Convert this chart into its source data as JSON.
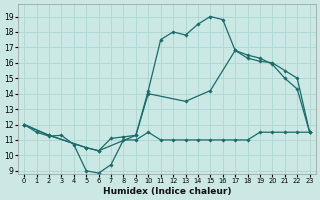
{
  "xlabel": "Humidex (Indice chaleur)",
  "background_color": "#cce8e4",
  "grid_color": "#b0d8d4",
  "line_color": "#1a6b6b",
  "xlim": [
    -0.5,
    23.5
  ],
  "ylim": [
    8.8,
    19.8
  ],
  "xticks": [
    0,
    1,
    2,
    3,
    4,
    5,
    6,
    7,
    8,
    9,
    10,
    11,
    12,
    13,
    14,
    15,
    16,
    17,
    18,
    19,
    20,
    21,
    22,
    23
  ],
  "yticks": [
    9,
    10,
    11,
    12,
    13,
    14,
    15,
    16,
    17,
    18,
    19
  ],
  "line1_x": [
    0,
    1,
    2,
    3,
    4,
    5,
    6,
    7,
    8,
    9,
    10,
    11,
    12,
    13,
    14,
    15,
    16,
    17,
    18,
    19,
    20,
    21,
    22,
    23
  ],
  "line1_y": [
    12.0,
    11.5,
    11.25,
    11.3,
    10.7,
    9.0,
    8.85,
    9.4,
    11.0,
    11.0,
    11.5,
    11.0,
    11.0,
    11.0,
    11.0,
    11.0,
    11.0,
    11.0,
    11.0,
    11.5,
    11.5,
    11.5,
    11.5,
    11.5
  ],
  "line2_x": [
    0,
    2,
    5,
    6,
    7,
    8,
    9,
    10,
    13,
    15,
    17,
    18,
    19,
    20,
    21,
    22,
    23
  ],
  "line2_y": [
    12.0,
    11.3,
    10.5,
    10.3,
    11.1,
    11.2,
    11.3,
    14.0,
    13.5,
    14.2,
    16.8,
    16.3,
    16.1,
    16.0,
    15.5,
    15.0,
    11.5
  ],
  "line3_x": [
    0,
    2,
    5,
    6,
    9,
    10,
    11,
    12,
    13,
    14,
    15,
    16,
    17,
    18,
    19,
    20,
    21,
    22,
    23
  ],
  "line3_y": [
    12.0,
    11.3,
    10.5,
    10.3,
    11.3,
    14.2,
    17.5,
    18.0,
    17.8,
    18.5,
    19.0,
    18.8,
    16.8,
    16.5,
    16.3,
    15.9,
    15.0,
    14.3,
    11.5
  ]
}
